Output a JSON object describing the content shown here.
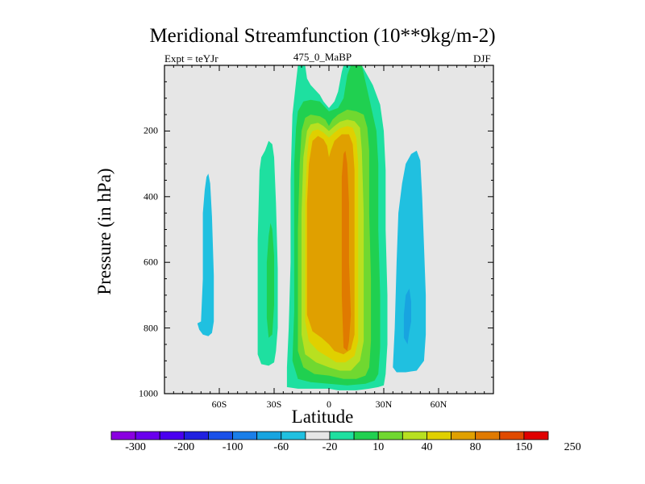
{
  "colors": {
    "background": "#ffffff",
    "plot_background": "#e6e6e6",
    "levels": [
      "#8a00e0",
      "#6a00ee",
      "#4a00f0",
      "#2020e0",
      "#1a50e8",
      "#1a7ee8",
      "#18a4e0",
      "#20c0e0",
      "#e6e6e6",
      "#1ee0a0",
      "#20d050",
      "#70d830",
      "#b8e020",
      "#e0d000",
      "#e0a000",
      "#e07a00",
      "#e04a00",
      "#e00000"
    ]
  },
  "chart_data": {
    "type": "contour",
    "title": "Meridional Streamfunction (10**9kg/m-2)",
    "subtitle_left": "Expt = teYJr",
    "subtitle_center": "475_0_MaBP",
    "subtitle_right": "DJF",
    "xlabel": "Latitude",
    "ylabel": "Pressure (in hPa)",
    "xlim": [
      -90,
      90
    ],
    "ylim": [
      1000,
      0
    ],
    "x_ticks": [
      {
        "value": -60,
        "label": "60S"
      },
      {
        "value": -30,
        "label": "30S"
      },
      {
        "value": 0,
        "label": "0"
      },
      {
        "value": 30,
        "label": "30N"
      },
      {
        "value": 60,
        "label": "60N"
      }
    ],
    "y_ticks": [
      {
        "value": 200,
        "label": "200"
      },
      {
        "value": 400,
        "label": "400"
      },
      {
        "value": 600,
        "label": "600"
      },
      {
        "value": 800,
        "label": "800"
      },
      {
        "value": 1000,
        "label": "1000"
      }
    ],
    "colorbar": {
      "levels": [
        -300,
        -250,
        -200,
        -150,
        -100,
        -80,
        -60,
        -40,
        -20,
        -10,
        10,
        20,
        40,
        60,
        80,
        100,
        150,
        200,
        250
      ],
      "labels": [
        "-300",
        "-200",
        "-100",
        "-60",
        "-20",
        "10",
        "40",
        "80",
        "150",
        "250"
      ]
    },
    "regions": [
      {
        "name": "sh-high-lat-negative-cell",
        "value": -20,
        "level": 7,
        "points": [
          [
            -72,
            786
          ],
          [
            -70,
            780
          ],
          [
            -69,
            650
          ],
          [
            -69,
            450
          ],
          [
            -68,
            380
          ],
          [
            -67,
            340
          ],
          [
            -66,
            330
          ],
          [
            -65,
            360
          ],
          [
            -64,
            460
          ],
          [
            -63,
            640
          ],
          [
            -63,
            780
          ],
          [
            -64,
            815
          ],
          [
            -66,
            825
          ],
          [
            -69,
            820
          ],
          [
            -71,
            805
          ]
        ]
      },
      {
        "name": "sh-mid-lat-positive-cell",
        "value": 10,
        "level": 9,
        "points": [
          [
            -39,
            530
          ],
          [
            -38,
            320
          ],
          [
            -37,
            280
          ],
          [
            -35,
            260
          ],
          [
            -33,
            230
          ],
          [
            -31,
            240
          ],
          [
            -30,
            280
          ],
          [
            -29,
            420
          ],
          [
            -28,
            620
          ],
          [
            -28,
            800
          ],
          [
            -29,
            870
          ],
          [
            -30,
            905
          ],
          [
            -33,
            915
          ],
          [
            -37,
            910
          ],
          [
            -39,
            880
          ]
        ]
      },
      {
        "name": "sh-mid-lat-positive-cell-core",
        "value": 20,
        "level": 10,
        "points": [
          [
            -34,
            600
          ],
          [
            -33,
            520
          ],
          [
            -32,
            480
          ],
          [
            -31,
            500
          ],
          [
            -30,
            580
          ],
          [
            -30,
            730
          ],
          [
            -31,
            820
          ],
          [
            -33,
            830
          ],
          [
            -34,
            770
          ]
        ]
      },
      {
        "name": "hadley-cell-level-1",
        "value": 10,
        "level": 9,
        "points": [
          [
            -23,
            980
          ],
          [
            -23,
            920
          ],
          [
            -22,
            800
          ],
          [
            -21,
            600
          ],
          [
            -21,
            350
          ],
          [
            -20,
            150
          ],
          [
            -18,
            50
          ],
          [
            -17,
            0
          ],
          [
            -13,
            0
          ],
          [
            -12,
            40
          ],
          [
            -10,
            60
          ],
          [
            -5,
            90
          ],
          [
            -3,
            110
          ],
          [
            0,
            130
          ],
          [
            3,
            110
          ],
          [
            5,
            80
          ],
          [
            7,
            20
          ],
          [
            8,
            0
          ],
          [
            18,
            0
          ],
          [
            20,
            20
          ],
          [
            24,
            60
          ],
          [
            28,
            120
          ],
          [
            30,
            200
          ],
          [
            31,
            320
          ],
          [
            31,
            500
          ],
          [
            32,
            700
          ],
          [
            32,
            850
          ],
          [
            31,
            940
          ],
          [
            30,
            975
          ],
          [
            27,
            980
          ],
          [
            22,
            985
          ],
          [
            15,
            990
          ],
          [
            5,
            990
          ],
          [
            0,
            985
          ],
          [
            -5,
            985
          ],
          [
            -10,
            985
          ],
          [
            -17,
            985
          ]
        ]
      },
      {
        "name": "hadley-cell-level-2",
        "value": 20,
        "level": 10,
        "points": [
          [
            -20,
            900
          ],
          [
            -19,
            750
          ],
          [
            -19,
            500
          ],
          [
            -19,
            300
          ],
          [
            -18,
            190
          ],
          [
            -17,
            140
          ],
          [
            -14,
            110
          ],
          [
            -10,
            105
          ],
          [
            -5,
            110
          ],
          [
            0,
            140
          ],
          [
            5,
            130
          ],
          [
            8,
            100
          ],
          [
            10,
            30
          ],
          [
            12,
            0
          ],
          [
            18,
            0
          ],
          [
            20,
            50
          ],
          [
            22,
            100
          ],
          [
            24,
            150
          ],
          [
            26,
            200
          ],
          [
            27,
            300
          ],
          [
            27,
            500
          ],
          [
            28,
            700
          ],
          [
            28,
            860
          ],
          [
            27,
            940
          ],
          [
            25,
            960
          ],
          [
            20,
            970
          ],
          [
            10,
            975
          ],
          [
            0,
            970
          ],
          [
            -10,
            965
          ],
          [
            -17,
            955
          ]
        ]
      },
      {
        "name": "hadley-cell-level-3",
        "value": 40,
        "level": 11,
        "points": [
          [
            -17,
            870
          ],
          [
            -17,
            700
          ],
          [
            -17,
            500
          ],
          [
            -16,
            300
          ],
          [
            -15,
            200
          ],
          [
            -13,
            160
          ],
          [
            -10,
            150
          ],
          [
            -5,
            155
          ],
          [
            -2,
            165
          ],
          [
            0,
            185
          ],
          [
            2,
            165
          ],
          [
            5,
            150
          ],
          [
            10,
            135
          ],
          [
            15,
            140
          ],
          [
            19,
            150
          ],
          [
            21,
            190
          ],
          [
            22,
            260
          ],
          [
            22,
            450
          ],
          [
            23,
            650
          ],
          [
            23,
            840
          ],
          [
            22,
            920
          ],
          [
            20,
            945
          ],
          [
            15,
            955
          ],
          [
            8,
            955
          ],
          [
            0,
            945
          ],
          [
            -8,
            940
          ],
          [
            -14,
            920
          ]
        ]
      },
      {
        "name": "hadley-cell-level-4",
        "value": 60,
        "level": 12,
        "points": [
          [
            -15,
            820
          ],
          [
            -15,
            650
          ],
          [
            -15,
            450
          ],
          [
            -14,
            280
          ],
          [
            -12,
            200
          ],
          [
            -10,
            180
          ],
          [
            -6,
            175
          ],
          [
            -3,
            185
          ],
          [
            0,
            200
          ],
          [
            3,
            185
          ],
          [
            6,
            172
          ],
          [
            10,
            165
          ],
          [
            14,
            170
          ],
          [
            17,
            190
          ],
          [
            18,
            260
          ],
          [
            19,
            450
          ],
          [
            19,
            650
          ],
          [
            19,
            840
          ],
          [
            17,
            900
          ],
          [
            12,
            930
          ],
          [
            6,
            930
          ],
          [
            0,
            920
          ],
          [
            -7,
            905
          ],
          [
            -13,
            880
          ]
        ]
      },
      {
        "name": "hadley-cell-level-5",
        "value": 80,
        "level": 13,
        "points": [
          [
            -13,
            780
          ],
          [
            -13,
            600
          ],
          [
            -13,
            420
          ],
          [
            -12,
            280
          ],
          [
            -11,
            220
          ],
          [
            -9,
            200
          ],
          [
            -6,
            195
          ],
          [
            -3,
            205
          ],
          [
            0,
            220
          ],
          [
            3,
            205
          ],
          [
            6,
            192
          ],
          [
            10,
            185
          ],
          [
            13,
            190
          ],
          [
            15,
            220
          ],
          [
            16,
            300
          ],
          [
            16,
            500
          ],
          [
            16,
            700
          ],
          [
            16,
            840
          ],
          [
            14,
            885
          ],
          [
            9,
            905
          ],
          [
            4,
            905
          ],
          [
            0,
            890
          ],
          [
            -6,
            870
          ],
          [
            -11,
            840
          ]
        ]
      },
      {
        "name": "hadley-cell-level-6",
        "value": 100,
        "level": 14,
        "points": [
          [
            -12,
            760
          ],
          [
            -12,
            580
          ],
          [
            -12,
            420
          ],
          [
            -11,
            300
          ],
          [
            -9,
            230
          ],
          [
            -6,
            215
          ],
          [
            -3,
            225
          ],
          [
            -1,
            245
          ],
          [
            0,
            280
          ],
          [
            1,
            260
          ],
          [
            3,
            230
          ],
          [
            7,
            210
          ],
          [
            11,
            210
          ],
          [
            13,
            240
          ],
          [
            14,
            320
          ],
          [
            14,
            500
          ],
          [
            14,
            700
          ],
          [
            14,
            820
          ],
          [
            12,
            865
          ],
          [
            8,
            880
          ],
          [
            3,
            870
          ],
          [
            0,
            850
          ],
          [
            -4,
            830
          ],
          [
            -9,
            810
          ]
        ]
      },
      {
        "name": "hadley-cell-core",
        "value": 150,
        "level": 15,
        "points": [
          [
            8,
            860
          ],
          [
            7,
            700
          ],
          [
            7,
            500
          ],
          [
            7,
            340
          ],
          [
            8,
            270
          ],
          [
            9,
            260
          ],
          [
            10,
            300
          ],
          [
            11,
            420
          ],
          [
            11,
            600
          ],
          [
            12,
            760
          ],
          [
            11,
            840
          ],
          [
            10,
            870
          ]
        ]
      },
      {
        "name": "nh-negative-cell-outer",
        "value": -10,
        "level": 8,
        "points": [
          [
            32,
            980
          ],
          [
            33,
            900
          ],
          [
            34,
            700
          ],
          [
            35,
            450
          ],
          [
            36,
            200
          ],
          [
            37,
            100
          ],
          [
            38,
            60
          ],
          [
            42,
            0
          ],
          [
            62,
            0
          ],
          [
            61,
            60
          ],
          [
            59,
            150
          ],
          [
            57,
            220
          ],
          [
            55,
            270
          ],
          [
            54,
            350
          ],
          [
            53,
            500
          ],
          [
            54,
            700
          ],
          [
            55,
            850
          ],
          [
            54,
            920
          ],
          [
            53,
            955
          ],
          [
            48,
            970
          ],
          [
            42,
            975
          ],
          [
            36,
            980
          ]
        ]
      },
      {
        "name": "nh-negative-cell-mid",
        "value": -20,
        "level": 7,
        "points": [
          [
            35,
            920
          ],
          [
            36,
            800
          ],
          [
            37,
            600
          ],
          [
            38,
            450
          ],
          [
            40,
            360
          ],
          [
            42,
            300
          ],
          [
            45,
            270
          ],
          [
            48,
            260
          ],
          [
            50,
            290
          ],
          [
            51,
            400
          ],
          [
            52,
            550
          ],
          [
            53,
            700
          ],
          [
            53,
            820
          ],
          [
            52,
            900
          ],
          [
            48,
            930
          ],
          [
            42,
            935
          ],
          [
            37,
            935
          ]
        ]
      },
      {
        "name": "nh-negative-cell-inner",
        "value": -40,
        "level": 6,
        "points": [
          [
            41,
            830
          ],
          [
            41,
            760
          ],
          [
            42,
            700
          ],
          [
            44,
            680
          ],
          [
            45,
            720
          ],
          [
            45,
            780
          ],
          [
            44,
            810
          ],
          [
            43,
            850
          ]
        ]
      }
    ]
  }
}
